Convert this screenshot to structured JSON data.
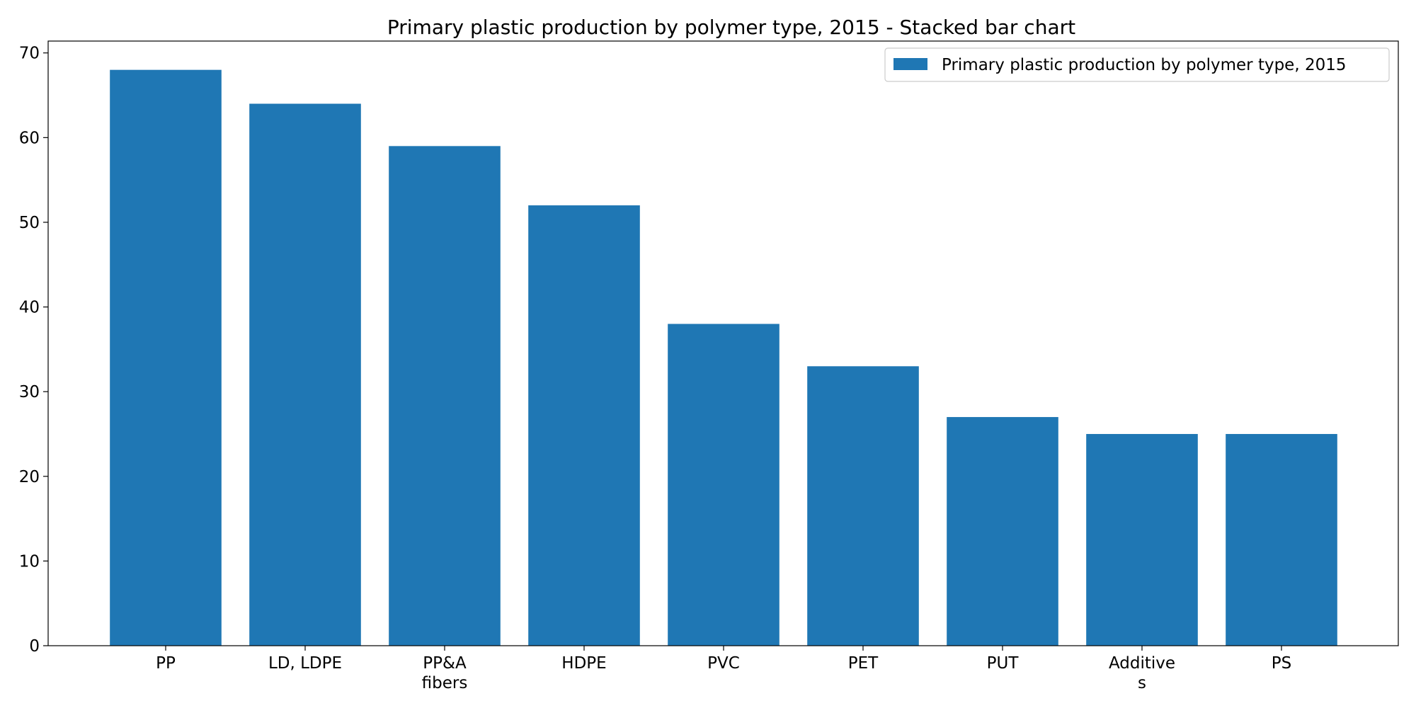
{
  "chart_data": {
    "type": "bar",
    "title": "Primary plastic production by polymer type, 2015 - Stacked bar chart",
    "xlabel": "",
    "ylabel": "",
    "categories": [
      [
        "PP"
      ],
      [
        "LD, LDPE"
      ],
      [
        "PP&A",
        "fibers"
      ],
      [
        "HDPE"
      ],
      [
        "PVC"
      ],
      [
        "PET"
      ],
      [
        "PUT"
      ],
      [
        "Additive",
        "s"
      ],
      [
        "PS"
      ]
    ],
    "series": [
      {
        "name": "Primary plastic production by polymer type, 2015",
        "values": [
          68,
          64,
          59,
          52,
          38,
          33,
          27,
          25,
          25
        ],
        "color": "#1f77b4"
      }
    ],
    "ylim": [
      0,
      71.4
    ],
    "yticks": [
      "0",
      "10",
      "20",
      "30",
      "40",
      "50",
      "60",
      "70"
    ],
    "grid": false,
    "legend_position": "top-right"
  }
}
